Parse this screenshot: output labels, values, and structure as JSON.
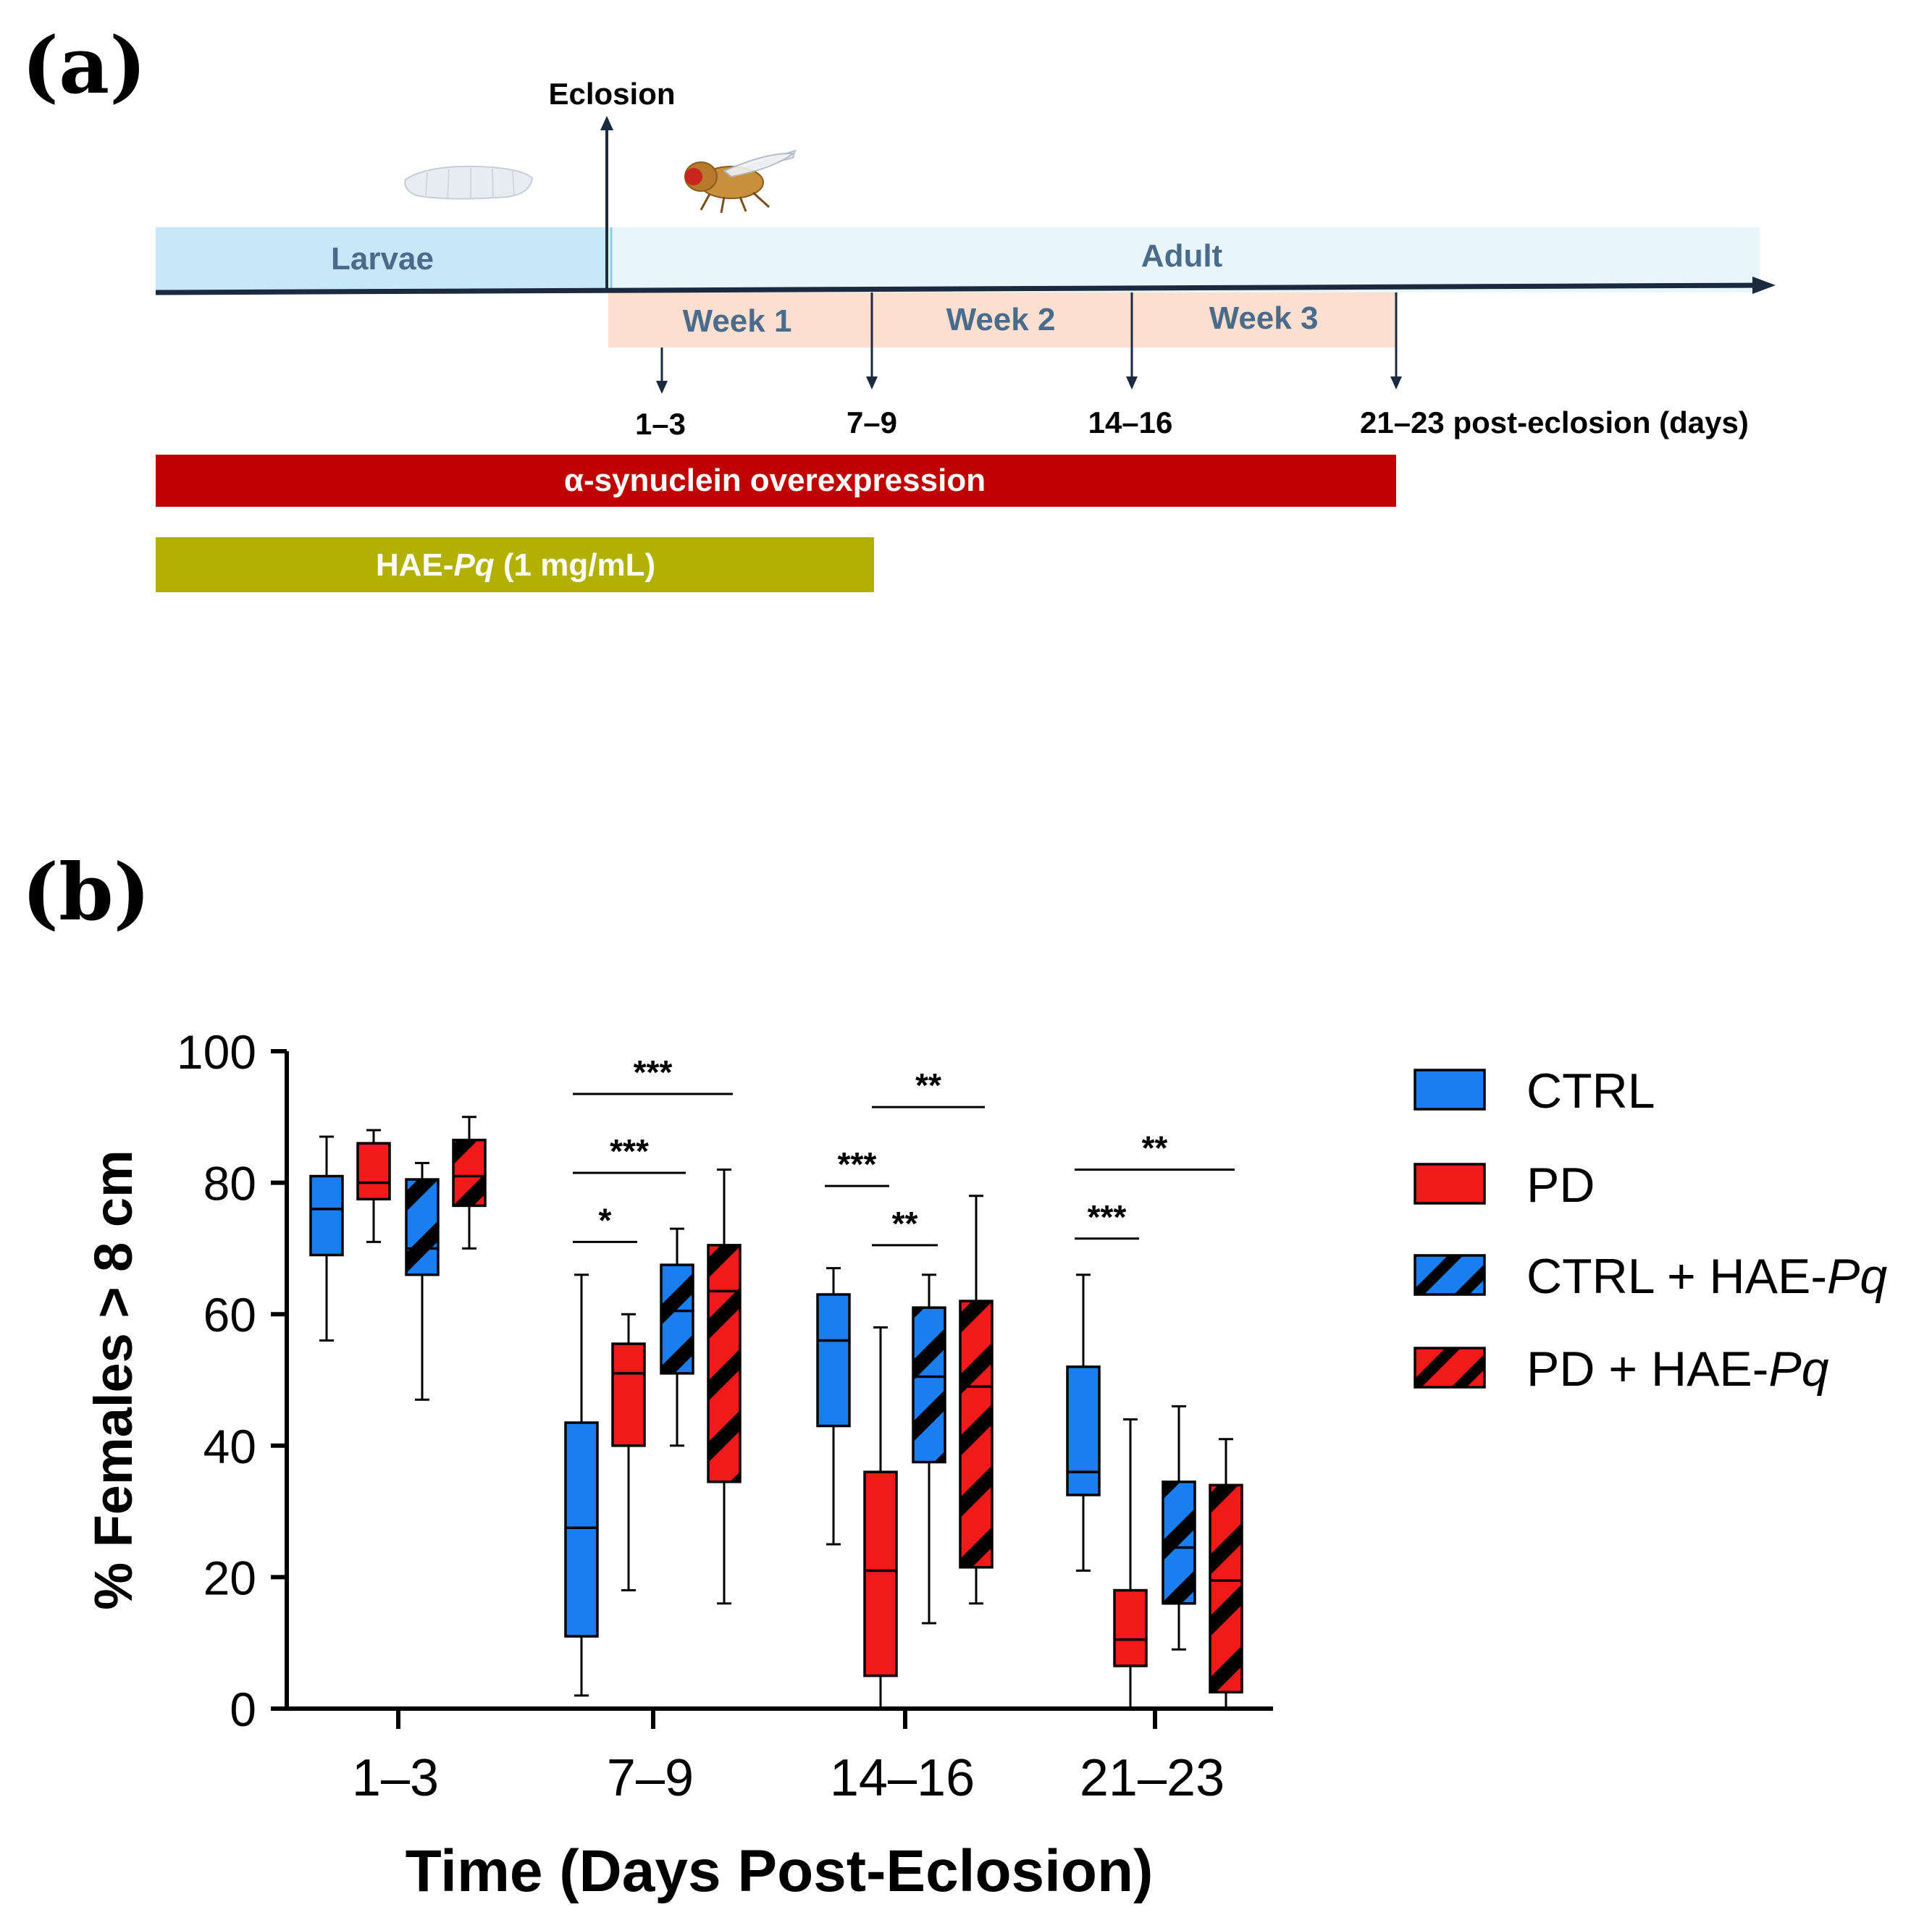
{
  "panel_a": {
    "label": "(a)",
    "eclosion_label": "Eclosion",
    "larvae_label": "Larvae",
    "adult_label": "Adult",
    "weeks": [
      "Week 1",
      "Week 2",
      "Week 3"
    ],
    "timepoints": [
      "1–3",
      "7–9",
      "14–16",
      "21–23 post-eclosion (days)"
    ],
    "synuclein_label": "α-synuclein overexpression",
    "hae_prefix": "HAE-",
    "hae_italic": "Pq",
    "hae_suffix": " (1 mg/mL)"
  },
  "panel_b": {
    "label": "(b)"
  },
  "chart_data": {
    "type": "box",
    "ylabel": "% Females > 8 cm",
    "xlabel": "Time (Days Post-Eclosion)",
    "ylim": [
      0,
      100
    ],
    "yticks": [
      "0",
      "20",
      "40",
      "60",
      "80",
      "100"
    ],
    "categories": [
      "1–3",
      "7–9",
      "14–16",
      "21–23"
    ],
    "series": [
      {
        "name": "CTRL",
        "legend_main": "CTRL",
        "legend_italic": "",
        "color": "#1a7ef0",
        "hatched": false,
        "boxes": [
          {
            "min": 56,
            "q1": 69,
            "median": 76,
            "q3": 81,
            "max": 87
          },
          {
            "min": 2,
            "q1": 11,
            "median": 27.5,
            "q3": 43.5,
            "max": 66
          },
          {
            "min": 25,
            "q1": 43,
            "median": 56,
            "q3": 63,
            "max": 67
          },
          {
            "min": 21,
            "q1": 32.5,
            "median": 36,
            "q3": 52,
            "max": 66
          }
        ]
      },
      {
        "name": "PD",
        "legend_main": "PD",
        "legend_italic": "",
        "color": "#f01a1a",
        "hatched": false,
        "boxes": [
          {
            "min": 71,
            "q1": 77.5,
            "median": 80,
            "q3": 86,
            "max": 88
          },
          {
            "min": 18,
            "q1": 40,
            "median": 51,
            "q3": 55.5,
            "max": 60
          },
          {
            "min": 0,
            "q1": 5,
            "median": 21,
            "q3": 36,
            "max": 58
          },
          {
            "min": 0,
            "q1": 6.5,
            "median": 10.5,
            "q3": 18,
            "max": 44
          }
        ]
      },
      {
        "name": "CTRL + HAE-Pq",
        "legend_main": "CTRL + HAE-",
        "legend_italic": "Pq",
        "color": "#1a7ef0",
        "hatched": true,
        "boxes": [
          {
            "min": 47,
            "q1": 66,
            "median": 70,
            "q3": 80.5,
            "max": 83
          },
          {
            "min": 40,
            "q1": 51,
            "median": 60.5,
            "q3": 67.5,
            "max": 73
          },
          {
            "min": 13,
            "q1": 37.5,
            "median": 50.5,
            "q3": 61,
            "max": 66
          },
          {
            "min": 9,
            "q1": 16,
            "median": 24.5,
            "q3": 34.5,
            "max": 46
          }
        ]
      },
      {
        "name": "PD + HAE-Pq",
        "legend_main": "PD + HAE-",
        "legend_italic": "Pq",
        "color": "#f01a1a",
        "hatched": true,
        "boxes": [
          {
            "min": 70,
            "q1": 76.5,
            "median": 81,
            "q3": 86.5,
            "max": 90
          },
          {
            "min": 16,
            "q1": 34.5,
            "median": 63.5,
            "q3": 70.5,
            "max": 82
          },
          {
            "min": 16,
            "q1": 21.5,
            "median": 49,
            "q3": 62,
            "max": 78
          },
          {
            "min": 0,
            "q1": 2.5,
            "median": 19.5,
            "q3": 34,
            "max": 41
          }
        ]
      }
    ],
    "significance": [
      {
        "category": 1,
        "from": 0,
        "to": 1,
        "y": 71,
        "label": "*"
      },
      {
        "category": 1,
        "from": 0,
        "to": 2,
        "y": 81.5,
        "label": "***"
      },
      {
        "category": 1,
        "from": 0,
        "to": 3,
        "y": 93.5,
        "label": "***"
      },
      {
        "category": 2,
        "from": 0,
        "to": 1,
        "y": 79.5,
        "label": "***"
      },
      {
        "category": 2,
        "from": 1,
        "to": 2,
        "y": 70.5,
        "label": "**"
      },
      {
        "category": 2,
        "from": 1,
        "to": 3,
        "y": 91.5,
        "label": "**"
      },
      {
        "category": 3,
        "from": 0,
        "to": 1,
        "y": 71.5,
        "label": "***"
      },
      {
        "category": 3,
        "from": 0,
        "to": 3,
        "y": 82,
        "label": "**"
      }
    ]
  }
}
